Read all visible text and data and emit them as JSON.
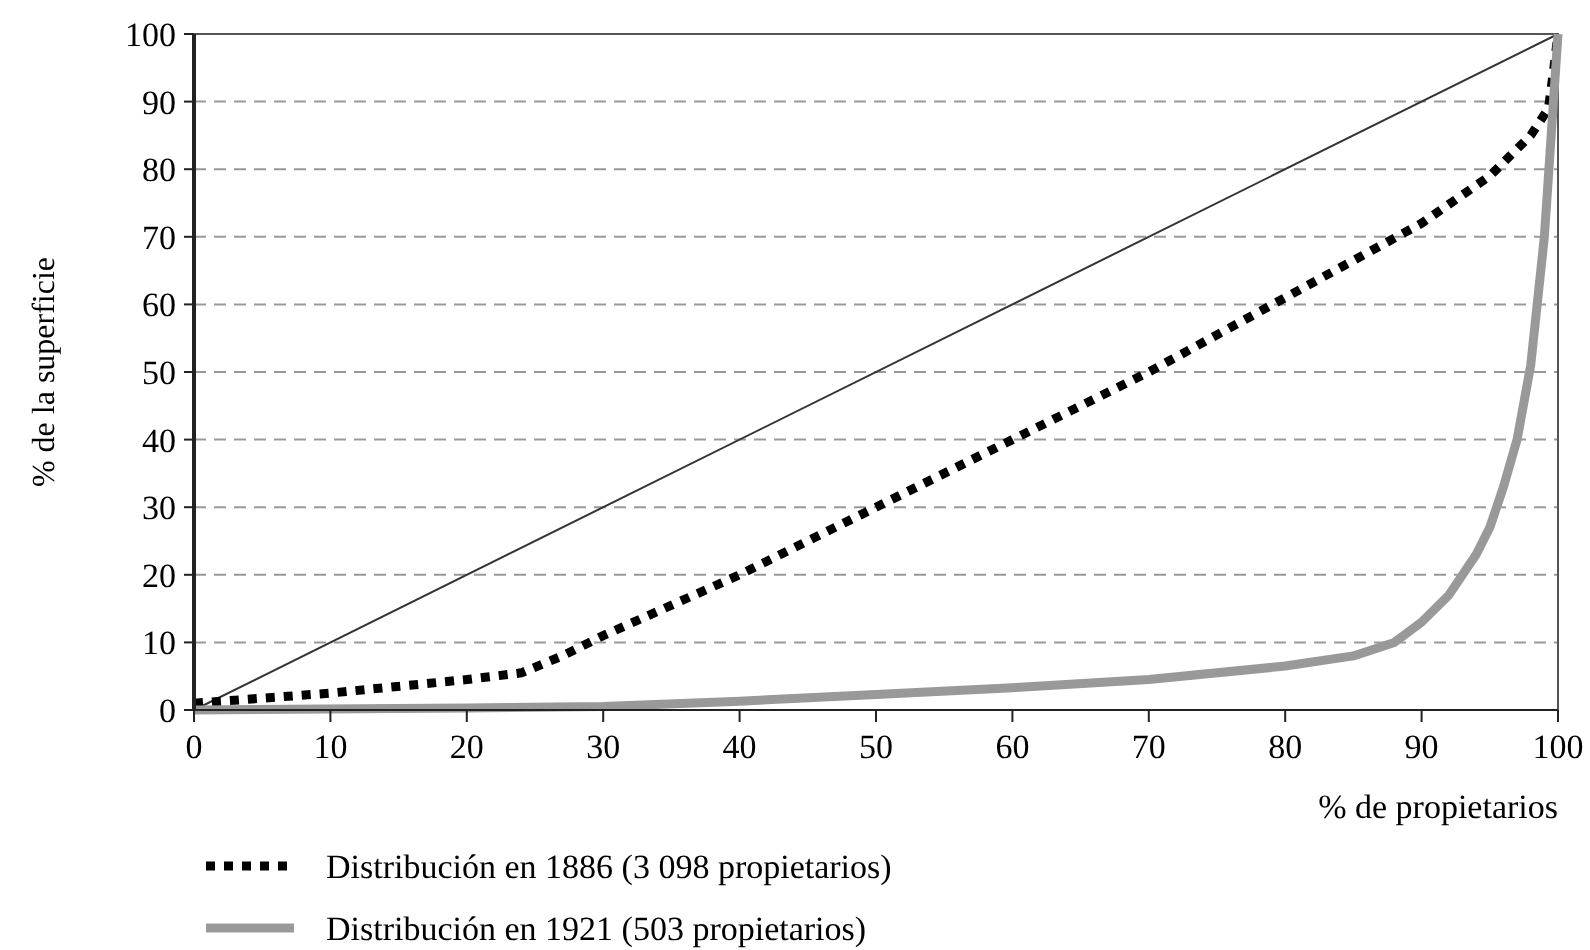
{
  "chart_data": {
    "type": "line",
    "xlabel": "% de propietarios",
    "ylabel": "% de la superficie",
    "xlim": [
      0,
      100
    ],
    "ylim": [
      0,
      100
    ],
    "xticks": [
      0,
      10,
      20,
      30,
      40,
      50,
      60,
      70,
      80,
      90,
      100
    ],
    "yticks": [
      0,
      10,
      20,
      30,
      40,
      50,
      60,
      70,
      80,
      90,
      100
    ],
    "grid": "y",
    "legend": "bottom",
    "marker": "none",
    "series": [
      {
        "color": "#333333",
        "line_style": "solid",
        "x": [
          0,
          100
        ],
        "values": [
          0,
          100
        ]
      },
      {
        "name": "Distribución en 1886 (3 098 propietarios)",
        "color": "#000000",
        "line_style": "dotted",
        "x": [
          0,
          10,
          20,
          24,
          27,
          30,
          40,
          50,
          60,
          70,
          80,
          90,
          95,
          98,
          99.3,
          99.7,
          100
        ],
        "values": [
          1,
          2.5,
          4.5,
          5.5,
          8,
          11,
          20,
          30,
          40,
          50,
          61,
          72,
          79,
          85,
          89,
          95,
          100
        ]
      },
      {
        "name": "Distribución en 1921 (503 propietarios)",
        "color": "#999999",
        "line_style": "solid",
        "x": [
          0,
          20,
          30,
          40,
          50,
          60,
          70,
          80,
          85,
          88,
          90,
          92,
          94,
          95,
          96,
          97,
          98,
          99,
          99.5,
          100
        ],
        "values": [
          0,
          0.3,
          0.5,
          1.3,
          2.3,
          3.3,
          4.5,
          6.5,
          8,
          10,
          13,
          17,
          23,
          27,
          33,
          40,
          51,
          70,
          85,
          100
        ]
      }
    ]
  }
}
